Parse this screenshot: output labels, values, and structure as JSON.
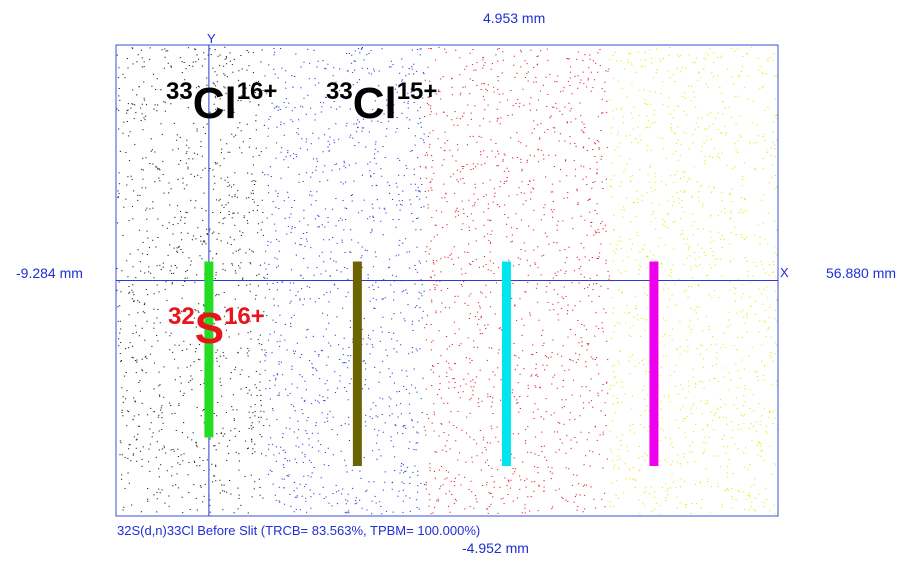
{
  "chart_data": {
    "type": "scatter",
    "title": "",
    "caption": "32S(d,n)33Cl Before Slit (TRCB=   83.563%,  TPBM=  100.000%)",
    "x_axis": {
      "label": "X",
      "min_label": "-9.284 mm",
      "max_label": "56.880 mm",
      "range_mm": [
        -9.284,
        56.88
      ]
    },
    "y_axis": {
      "label": "Y",
      "min_label": "-4.952 mm",
      "max_label": "4.953 mm",
      "range_mm": [
        -4.952,
        4.953
      ]
    },
    "background_bands": [
      {
        "color": "#202020",
        "x_range_mm": [
          -9.284,
          5.5
        ]
      },
      {
        "color": "#2a3adb",
        "x_range_mm": [
          5.5,
          21.5
        ]
      },
      {
        "color": "#e0202a",
        "x_range_mm": [
          21.5,
          40.0
        ]
      },
      {
        "color": "#e8e800",
        "x_range_mm": [
          40.0,
          56.88
        ]
      }
    ],
    "focal_lines": [
      {
        "color": "#22dd22",
        "x_mm": 0.0,
        "y_range_mm": [
          -3.3,
          0.4
        ]
      },
      {
        "color": "#6b6400",
        "x_mm": 14.84,
        "y_range_mm": [
          -3.9,
          0.4
        ]
      },
      {
        "color": "#00e5ee",
        "x_mm": 29.74,
        "y_range_mm": [
          -3.9,
          0.4
        ]
      },
      {
        "color": "#ee00ee",
        "x_mm": 44.48,
        "y_range_mm": [
          -3.9,
          0.4
        ]
      }
    ],
    "annotations": [
      {
        "mass": "33",
        "element": "Cl",
        "charge": "16+",
        "color": "#000000"
      },
      {
        "mass": "33",
        "element": "Cl",
        "charge": "15+",
        "color": "#000000"
      },
      {
        "mass": "32",
        "element": "S",
        "charge": "16+",
        "color": "#e8141c"
      }
    ]
  }
}
